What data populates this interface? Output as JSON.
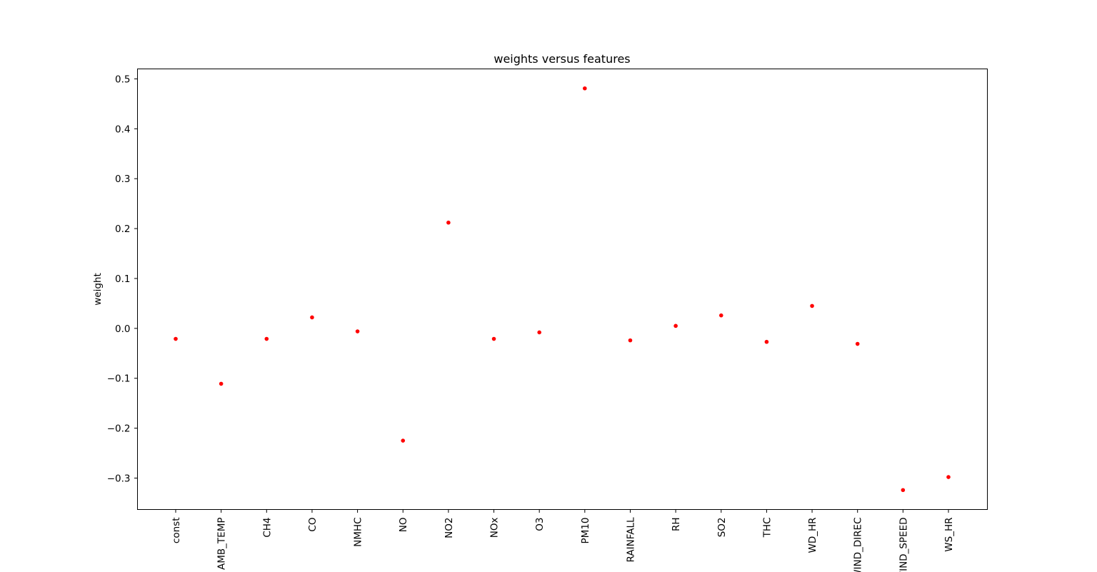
{
  "chart_data": {
    "type": "scatter",
    "title": "weights versus features",
    "xlabel": "",
    "ylabel": "weight",
    "categories": [
      "const",
      "AMB_TEMP",
      "CH4",
      "CO",
      "NMHC",
      "NO",
      "NO2",
      "NOx",
      "O3",
      "PM10",
      "RAINFALL",
      "RH",
      "SO2",
      "THC",
      "WD_HR",
      "WIND_DIREC",
      "WIND_SPEED",
      "WS_HR"
    ],
    "series": [
      {
        "values": [
          -0.021,
          -0.111,
          -0.021,
          0.022,
          -0.006,
          -0.225,
          0.212,
          -0.021,
          -0.008,
          0.481,
          -0.024,
          0.005,
          0.026,
          -0.027,
          0.045,
          -0.031,
          -0.324,
          -0.298
        ]
      }
    ],
    "ylim": [
      -0.363,
      0.52
    ],
    "yticks": [
      -0.3,
      -0.2,
      -0.1,
      0.0,
      0.1,
      0.2,
      0.3,
      0.4,
      0.5
    ],
    "ytick_labels": [
      "−0.3",
      "−0.2",
      "−0.1",
      "0.0",
      "0.1",
      "0.2",
      "0.3",
      "0.4",
      "0.5"
    ],
    "marker_color": "#ff0000",
    "grid": false,
    "legend": false
  }
}
